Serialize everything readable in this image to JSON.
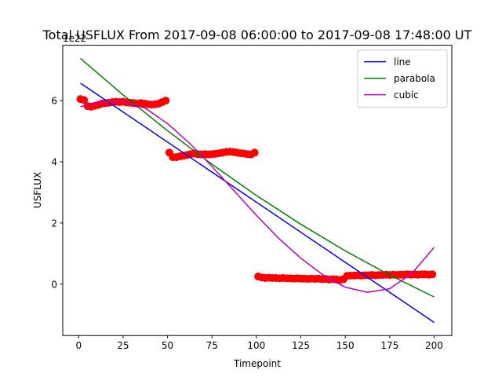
{
  "chart_data": {
    "type": "scatter",
    "title": "Total USFLUX From 2017-09-08 06:00:00 to 2017-09-08 17:48:00 UT",
    "x_label": "Timepoint",
    "y_label": "USFLUX",
    "y_offset_label": "1e22",
    "xlim": [
      -8.95,
      209.95
    ],
    "xticks": [
      0,
      25,
      50,
      75,
      100,
      125,
      150,
      175,
      200
    ],
    "ylim": [
      -1.68,
      7.81
    ],
    "yticks": [
      0,
      2,
      4,
      6
    ],
    "legend": "upper right",
    "series": [
      {
        "type": "scatter",
        "color": "#ff0000",
        "x": [
          1,
          3,
          5,
          7,
          9,
          11,
          13,
          15,
          17,
          19,
          21,
          23,
          25,
          27,
          29,
          31,
          33,
          35,
          37,
          39,
          41,
          43,
          45,
          47,
          49,
          51,
          53,
          55,
          57,
          59,
          61,
          63,
          65,
          67,
          69,
          71,
          73,
          75,
          77,
          79,
          81,
          83,
          85,
          87,
          89,
          91,
          93,
          95,
          97,
          99,
          101,
          103,
          105,
          107,
          109,
          111,
          113,
          115,
          117,
          119,
          121,
          123,
          125,
          127,
          129,
          131,
          133,
          135,
          137,
          139,
          141,
          143,
          145,
          147,
          149,
          151,
          153,
          155,
          157,
          159,
          161,
          163,
          165,
          167,
          169,
          171,
          173,
          175,
          177,
          179,
          181,
          183,
          185,
          187,
          189,
          191,
          193,
          195,
          197,
          199
        ],
        "values": [
          6.05,
          6.02,
          5.82,
          5.8,
          5.83,
          5.86,
          5.9,
          5.92,
          5.93,
          5.95,
          5.96,
          5.95,
          5.96,
          5.94,
          5.93,
          5.92,
          5.9,
          5.92,
          5.9,
          5.88,
          5.87,
          5.88,
          5.9,
          5.95,
          6.0,
          4.3,
          4.15,
          4.15,
          4.18,
          4.2,
          4.22,
          4.25,
          4.27,
          4.25,
          4.24,
          4.25,
          4.24,
          4.25,
          4.26,
          4.28,
          4.3,
          4.32,
          4.33,
          4.32,
          4.3,
          4.28,
          4.27,
          4.25,
          4.24,
          4.3,
          0.25,
          0.22,
          0.2,
          0.21,
          0.2,
          0.2,
          0.19,
          0.2,
          0.19,
          0.19,
          0.18,
          0.19,
          0.18,
          0.18,
          0.17,
          0.18,
          0.17,
          0.18,
          0.16,
          0.17,
          0.15,
          0.16,
          0.15,
          0.14,
          0.16,
          0.27,
          0.28,
          0.28,
          0.29,
          0.28,
          0.29,
          0.29,
          0.3,
          0.29,
          0.3,
          0.3,
          0.31,
          0.3,
          0.31,
          0.3,
          0.31,
          0.31,
          0.32,
          0.31,
          0.32,
          0.31,
          0.32,
          0.32,
          0.31,
          0.32
        ]
      },
      {
        "type": "line",
        "name": "line",
        "color": "#0000ff",
        "x": [
          1,
          200
        ],
        "values": [
          6.57,
          -1.25
        ]
      },
      {
        "type": "line",
        "name": "parabola",
        "color": "#008000",
        "x": [
          1,
          25,
          50,
          75,
          100,
          125,
          150,
          175,
          200
        ],
        "values": [
          7.38,
          6.185,
          5.015,
          3.919,
          2.9,
          1.957,
          1.089,
          0.297,
          -0.42
        ]
      },
      {
        "type": "line",
        "name": "cubic",
        "color": "#bf00bf",
        "x": [
          1,
          12.5,
          25,
          37.5,
          50,
          62.5,
          75,
          87.5,
          100,
          112.5,
          125,
          137.5,
          150,
          162.5,
          175,
          187.5,
          200
        ],
        "values": [
          5.8,
          5.95,
          5.97,
          5.75,
          5.25,
          4.6,
          3.85,
          3.05,
          2.25,
          1.5,
          0.85,
          0.3,
          -0.1,
          -0.27,
          -0.15,
          0.35,
          1.2
        ]
      }
    ]
  }
}
